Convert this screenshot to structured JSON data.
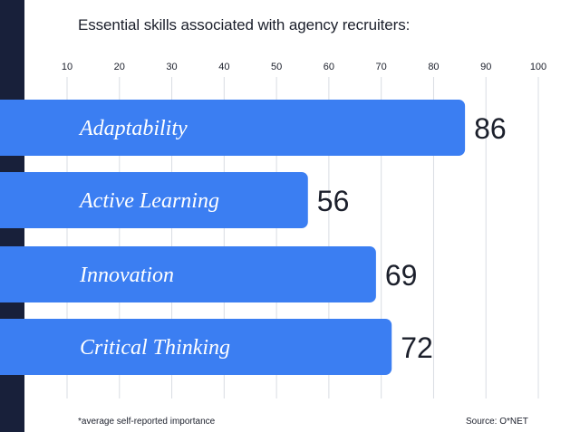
{
  "title": "Essential skills associated with agency recruiters:",
  "footnote": "*average self-reported importance",
  "source": "Source: O*NET",
  "colors": {
    "bar": "#3b7ef2",
    "rail": "#18203a",
    "grid": "#d9dce3",
    "text": "#1b1f2b"
  },
  "chart_data": {
    "type": "bar",
    "orientation": "horizontal",
    "title": "Essential skills associated with agency recruiters:",
    "categories": [
      "Adaptability",
      "Active Learning",
      "Innovation",
      "Critical Thinking"
    ],
    "values": [
      86,
      56,
      69,
      72
    ],
    "x_ticks": [
      10,
      20,
      30,
      40,
      50,
      60,
      70,
      80,
      90,
      100
    ],
    "xlim": [
      10,
      100
    ],
    "grid": true,
    "data_labels": true
  }
}
